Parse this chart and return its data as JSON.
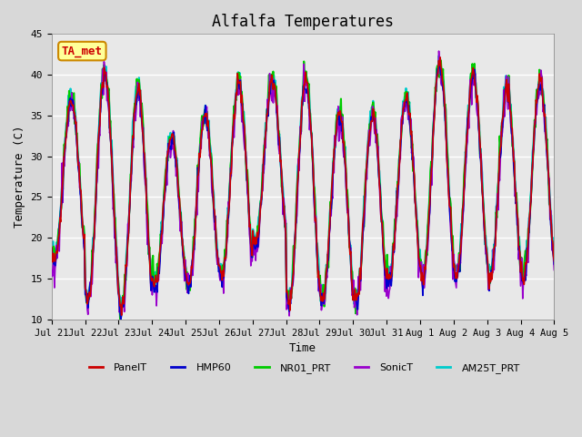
{
  "title": "Alfalfa Temperatures",
  "xlabel": "Time",
  "ylabel": "Temperature (C)",
  "ylim": [
    10,
    45
  ],
  "yticks": [
    10,
    15,
    20,
    25,
    30,
    35,
    40,
    45
  ],
  "background_color": "#e8e8e8",
  "plot_bg_color": "#e0e0e0",
  "series": {
    "PanelT": {
      "color": "#cc0000",
      "lw": 1.2
    },
    "HMP60": {
      "color": "#0000cc",
      "lw": 1.2
    },
    "NR01_PRT": {
      "color": "#00cc00",
      "lw": 1.5
    },
    "SonicT": {
      "color": "#9900cc",
      "lw": 1.2
    },
    "AM25T_PRT": {
      "color": "#00cccc",
      "lw": 1.5
    }
  },
  "xtick_labels": [
    "Jul 21",
    "Jul 22",
    "Jul 23",
    "Jul 24",
    "Jul 25",
    "Jul 26",
    "Jul 27",
    "Jul 28",
    "Jul 29",
    "Jul 30",
    "Jul 31",
    "Aug 1",
    "Aug 2",
    "Aug 3",
    "Aug 4",
    "Aug 5"
  ],
  "annotation_text": "TA_met",
  "annotation_color": "#cc0000",
  "annotation_bg": "#ffff99",
  "annotation_border": "#cc8800"
}
